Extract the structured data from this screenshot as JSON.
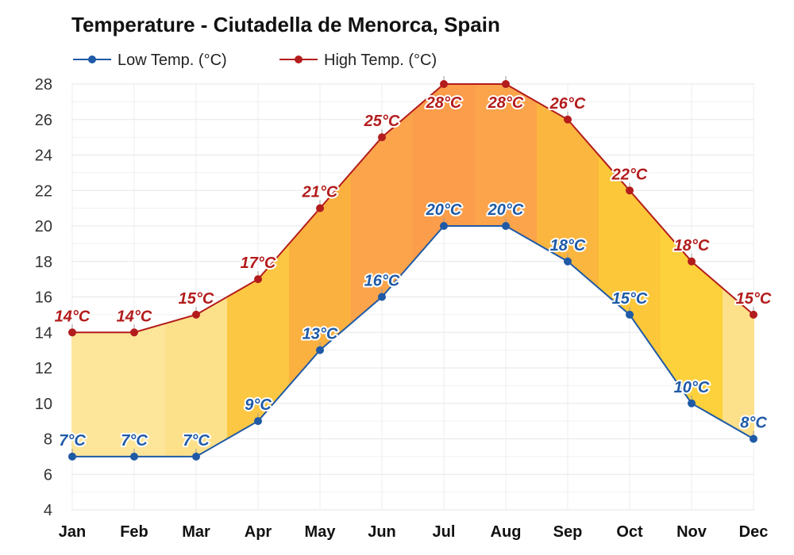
{
  "chart_data": {
    "type": "area",
    "title": "Temperature - Ciutadella de Menorca, Spain",
    "categories": [
      "Jan",
      "Feb",
      "Mar",
      "Apr",
      "May",
      "Jun",
      "Jul",
      "Aug",
      "Sep",
      "Oct",
      "Nov",
      "Dec"
    ],
    "series": [
      {
        "name": "Low Temp. (°C)",
        "key": "low",
        "color": "#1f5aa6",
        "values": [
          7,
          7,
          7,
          9,
          13,
          16,
          20,
          20,
          18,
          15,
          10,
          8
        ]
      },
      {
        "name": "High Temp. (°C)",
        "key": "high",
        "color": "#b31c1c",
        "values": [
          14,
          14,
          15,
          17,
          21,
          25,
          28,
          28,
          26,
          22,
          18,
          15
        ]
      }
    ],
    "unit": "°C",
    "ylim": [
      4,
      28
    ],
    "yticks": [
      4,
      6,
      8,
      10,
      12,
      14,
      16,
      18,
      20,
      22,
      24,
      26,
      28
    ],
    "grid": true,
    "legend_position": "top-left",
    "fill_colors": {
      "Jan": "#fde69a",
      "Feb": "#fde69a",
      "Mar": "#fde08a",
      "Apr": "#fcc743",
      "May": "#fbb140",
      "Jun": "#fba44c",
      "Jul": "#fb9d4a",
      "Aug": "#fba44c",
      "Sep": "#fbb63f",
      "Oct": "#fcc739",
      "Nov": "#fdd13c",
      "Dec": "#fde08a"
    }
  }
}
